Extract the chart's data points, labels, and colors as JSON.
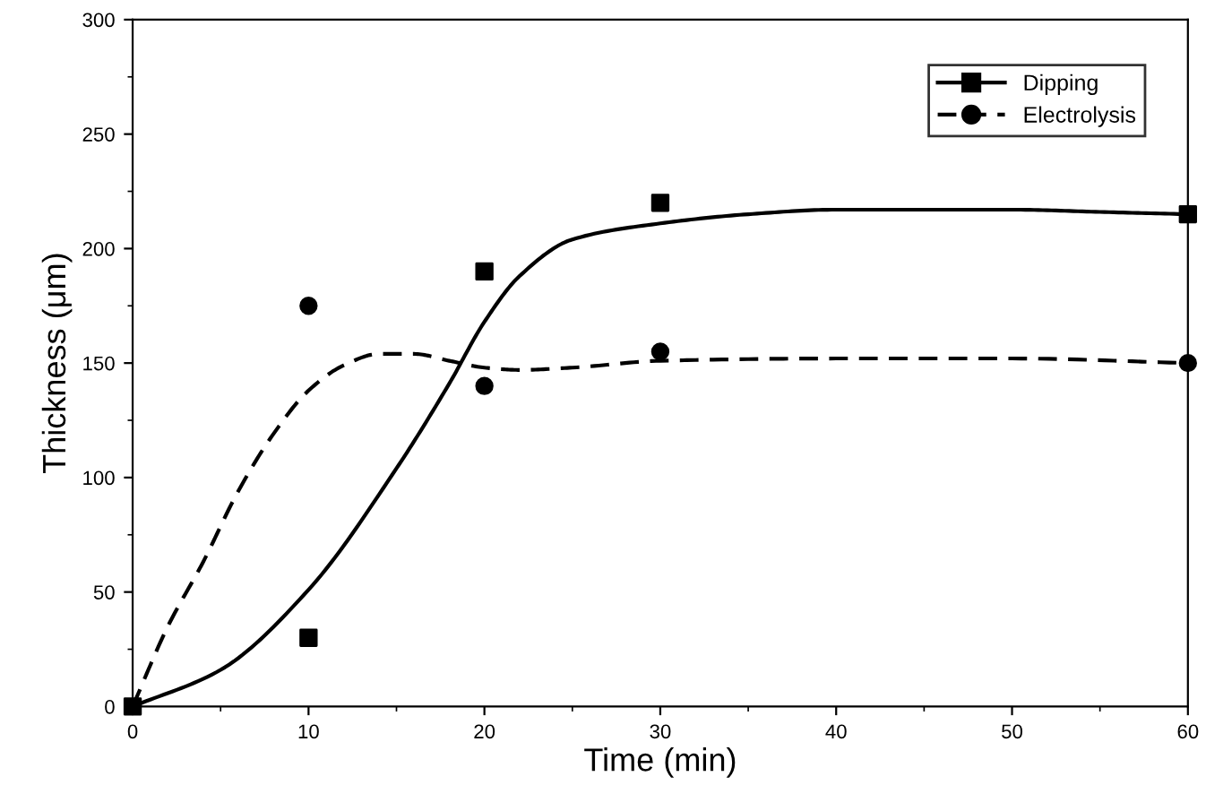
{
  "chart_data": {
    "type": "line",
    "xlabel": "Time (min)",
    "ylabel": "Thickness (μm)",
    "xlim": [
      0,
      60
    ],
    "xticks": [
      0,
      10,
      20,
      30,
      40,
      50,
      60
    ],
    "ylim": [
      0,
      300
    ],
    "yticks": [
      0,
      50,
      100,
      150,
      200,
      250,
      300
    ],
    "grid": false,
    "legend": "top right",
    "series": [
      {
        "color": "#000000",
        "line_style": "solid",
        "x": [
          0,
          5,
          10,
          15,
          18,
          20,
          22,
          25,
          30,
          35,
          40,
          45,
          50,
          55,
          60
        ],
        "values": [
          0,
          16,
          51,
          104,
          141,
          168,
          188,
          204,
          211,
          215,
          217,
          217,
          217,
          216,
          215
        ]
      },
      {
        "color": "#000000",
        "line_style": "dashed",
        "x": [
          0,
          2,
          4,
          6,
          8,
          10,
          12,
          14,
          16,
          18,
          20,
          22,
          25,
          30,
          40,
          50,
          60
        ],
        "values": [
          0,
          35,
          63,
          94,
          119,
          138,
          149,
          154,
          154,
          151,
          148,
          147,
          148,
          151,
          152,
          152,
          150
        ]
      },
      {
        "type": "scatter",
        "name": "Dipping",
        "color": "#000000",
        "marker": "square",
        "line_style": "solid",
        "x": [
          0,
          10,
          20,
          30,
          60
        ],
        "values": [
          0,
          30,
          190,
          220,
          215
        ]
      },
      {
        "type": "scatter",
        "name": "Electrolysis",
        "color": "#000000",
        "marker": "circle",
        "line_style": "dashed",
        "x": [
          10,
          20,
          30,
          60
        ],
        "values": [
          175,
          140,
          155,
          150
        ]
      }
    ]
  }
}
